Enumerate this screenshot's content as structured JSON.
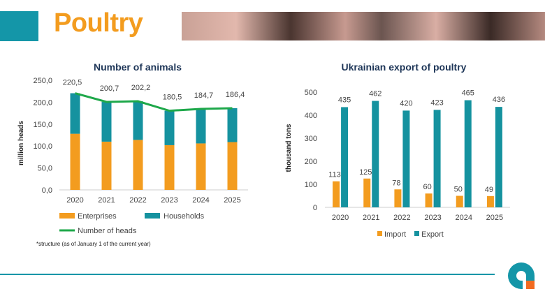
{
  "header": {
    "title": "Poultry"
  },
  "note": "*structure (as of January 1 of the current year)",
  "colors": {
    "enterprises": "#f39c1f",
    "households": "#15929f",
    "line": "#1ea84a",
    "import": "#f39c1f",
    "export": "#15929f"
  },
  "chart_data": [
    {
      "type": "bar",
      "stacked": true,
      "title": "Number of animals",
      "ylabel": "million heads",
      "ylim": [
        0,
        250
      ],
      "yticks": [
        "0,0",
        "50,0",
        "100,0",
        "150,0",
        "200,0",
        "250,0"
      ],
      "categories": [
        "2020",
        "2021",
        "2022",
        "2023",
        "2024",
        "2025"
      ],
      "series": [
        {
          "name": "Enterprises",
          "values": [
            128,
            110,
            114,
            102,
            106,
            109
          ]
        },
        {
          "name": "Households",
          "values": [
            92.5,
            90.7,
            88.2,
            78.5,
            78.7,
            77.4
          ]
        },
        {
          "name": "Number of heads",
          "type": "line",
          "values": [
            220.5,
            200.7,
            202.2,
            180.5,
            184.7,
            186.4
          ],
          "labels": [
            "220,5",
            "200,7",
            "202,2",
            "180,5",
            "184,7",
            "186,4"
          ]
        }
      ],
      "legend": "bottom"
    },
    {
      "type": "bar",
      "title": "Ukrainian export of poultry",
      "ylabel": "thousand tons",
      "ylim": [
        0,
        500
      ],
      "yticks": [
        "0",
        "100",
        "200",
        "300",
        "400",
        "500"
      ],
      "categories": [
        "2020",
        "2021",
        "2022",
        "2023",
        "2024",
        "2025"
      ],
      "series": [
        {
          "name": "Import",
          "values": [
            113,
            125,
            78,
            60,
            50,
            49
          ]
        },
        {
          "name": "Export",
          "values": [
            435,
            462,
            420,
            423,
            465,
            436
          ]
        }
      ],
      "legend": "bottom"
    }
  ]
}
